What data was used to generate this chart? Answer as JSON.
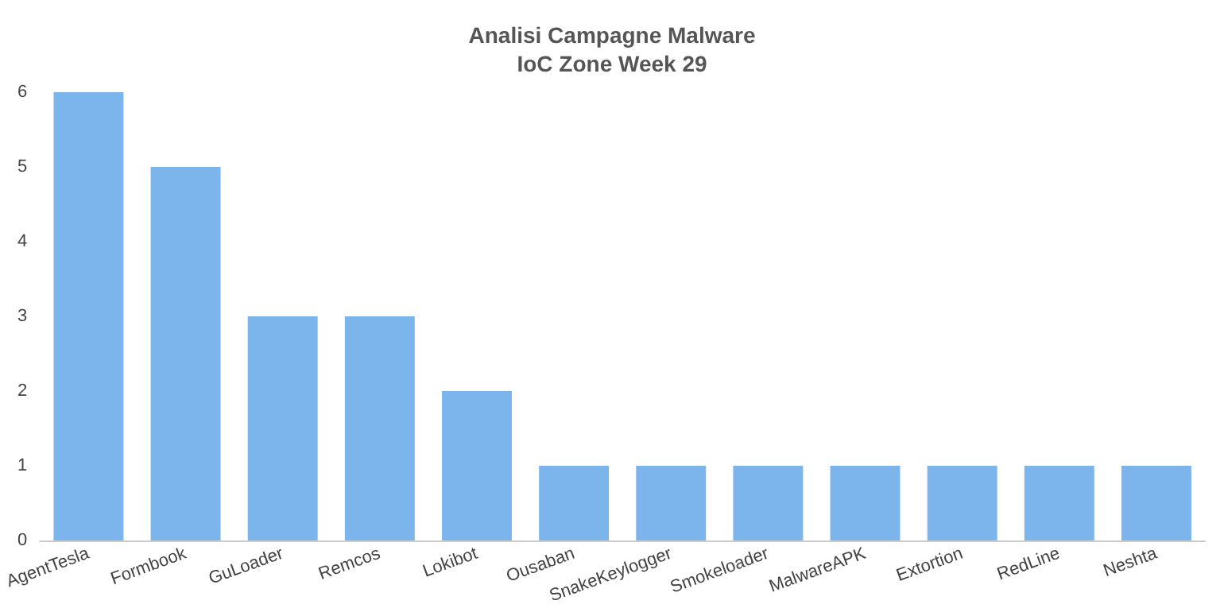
{
  "chart_data": {
    "type": "bar",
    "title": "Analisi Campagne Malware\nIoC Zone Week 29",
    "categories": [
      "AgentTesla",
      "Formbook",
      "GuLoader",
      "Remcos",
      "Lokibot",
      "Ousaban",
      "SnakeKeylogger",
      "Smokeloader",
      "MalwareAPK",
      "Extortion",
      "RedLine",
      "Neshta"
    ],
    "values": [
      6,
      5,
      3,
      3,
      2,
      1,
      1,
      1,
      1,
      1,
      1,
      1
    ],
    "color": "#7cb5ec",
    "ylim": [
      0,
      6
    ],
    "yticks": [
      0,
      1,
      2,
      3,
      4,
      5,
      6
    ],
    "grid": false
  }
}
